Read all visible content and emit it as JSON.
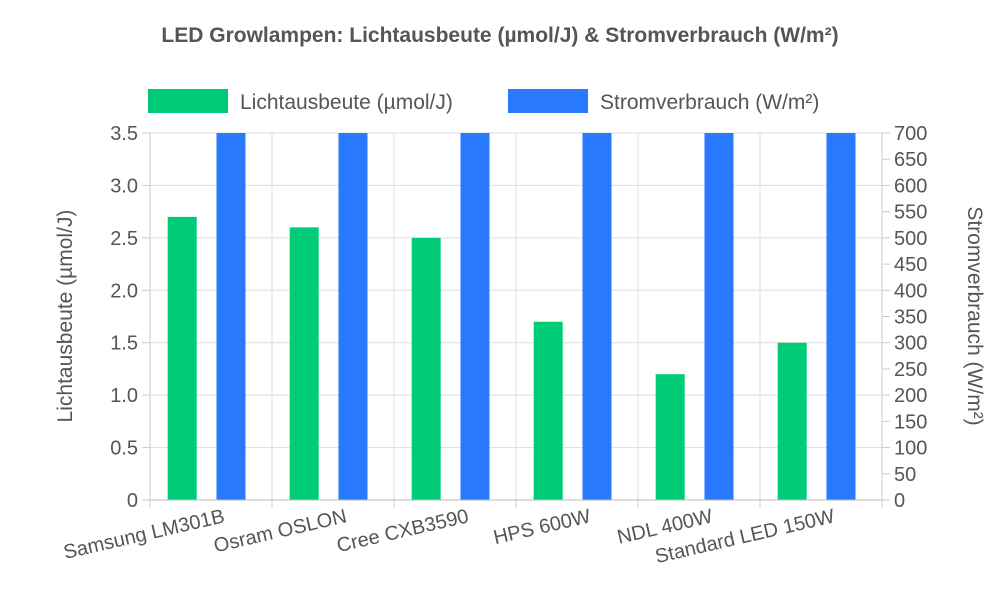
{
  "chart_data": {
    "type": "bar",
    "title": "LED Growlampen: Lichtausbeute (µmol/J) & Stromverbrauch (W/m²)",
    "categories": [
      "Samsung LM301B",
      "Osram OSLON",
      "Cree CXB3590",
      "HPS 600W",
      "NDL 400W",
      "Standard LED 150W"
    ],
    "series": [
      {
        "name": "Lichtausbeute (µmol/J)",
        "axis": "left",
        "color": "#00cc77",
        "values": [
          2.7,
          2.6,
          2.5,
          1.7,
          1.2,
          1.5
        ]
      },
      {
        "name": "Stromverbrauch (W/m²)",
        "axis": "right",
        "color": "#2979ff",
        "values": [
          700,
          700,
          700,
          700,
          700,
          700
        ]
      }
    ],
    "y_left": {
      "label": "Lichtausbeute (µmol/J)",
      "lim": [
        0,
        3.5
      ],
      "ticks": [
        "0",
        "0.5",
        "1.0",
        "1.5",
        "2.0",
        "2.5",
        "3.0",
        "3.5"
      ]
    },
    "y_right": {
      "label": "Stromverbrauch (W/m²)",
      "lim": [
        0,
        700
      ],
      "ticks": [
        "0",
        "50",
        "100",
        "150",
        "200",
        "250",
        "300",
        "350",
        "400",
        "450",
        "500",
        "550",
        "600",
        "650",
        "700"
      ]
    },
    "grid": true,
    "legend": "top"
  }
}
